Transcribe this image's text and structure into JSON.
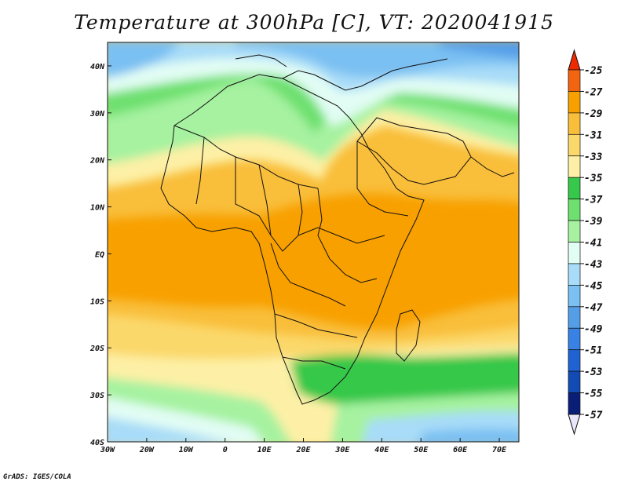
{
  "title": "Temperature at 300hPa [C], VT: 2020041915",
  "credit": "GrADS: IGES/COLA",
  "map": {
    "lon_range": [
      -30,
      75
    ],
    "lat_range": [
      -40,
      45
    ],
    "lat_ticks": [
      {
        "value": 40,
        "label": "40N"
      },
      {
        "value": 30,
        "label": "30N"
      },
      {
        "value": 20,
        "label": "20N"
      },
      {
        "value": 10,
        "label": "10N"
      },
      {
        "value": 0,
        "label": "EQ"
      },
      {
        "value": -10,
        "label": "10S"
      },
      {
        "value": -20,
        "label": "20S"
      },
      {
        "value": -30,
        "label": "30S"
      },
      {
        "value": -40,
        "label": "40S"
      }
    ],
    "lon_ticks": [
      {
        "value": -30,
        "label": "30W"
      },
      {
        "value": -20,
        "label": "20W"
      },
      {
        "value": -10,
        "label": "10W"
      },
      {
        "value": 0,
        "label": "0"
      },
      {
        "value": 10,
        "label": "10E"
      },
      {
        "value": 20,
        "label": "20E"
      },
      {
        "value": 30,
        "label": "30E"
      },
      {
        "value": 40,
        "label": "40E"
      },
      {
        "value": 50,
        "label": "50E"
      },
      {
        "value": 60,
        "label": "60E"
      },
      {
        "value": 70,
        "label": "70E"
      }
    ]
  },
  "colorbar": {
    "labels": [
      "-25",
      "-27",
      "-29",
      "-31",
      "-33",
      "-35",
      "-37",
      "-39",
      "-41",
      "-43",
      "-45",
      "-47",
      "-49",
      "-51",
      "-53",
      "-55",
      "-57"
    ],
    "colors": [
      "#f02a00",
      "#f36410",
      "#f8a000",
      "#f9be3a",
      "#fbd86a",
      "#fdf0a6",
      "#36c84a",
      "#6ee070",
      "#a6f2a0",
      "#e2fdf4",
      "#a8dcf8",
      "#7ac0f2",
      "#549ee8",
      "#3882e6",
      "#1f62d2",
      "#124bb4",
      "#0a1e78",
      "#e8e6f8"
    ]
  }
}
